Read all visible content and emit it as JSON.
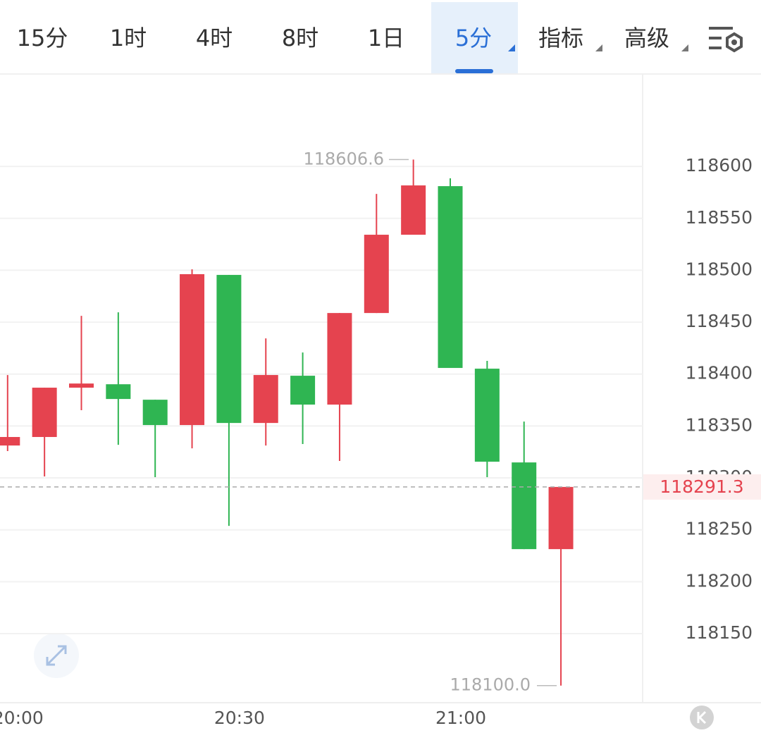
{
  "tabs": {
    "items": [
      "15分",
      "1时",
      "4时",
      "8时",
      "1日",
      "5分",
      "指标",
      "高级"
    ],
    "active": 5
  },
  "chart_data": {
    "type": "candlestick",
    "categories": [
      "20:00",
      null,
      null,
      null,
      null,
      null,
      "20:30",
      null,
      null,
      null,
      null,
      null,
      "21:00",
      null,
      null,
      null
    ],
    "open": [
      118331.2,
      118339.4,
      118386.9,
      118390.2,
      118375.3,
      118350.9,
      118495.5,
      118352.9,
      118398.4,
      118370.6,
      118458.8,
      118534.2,
      118581.0,
      118405.2,
      118314.9,
      118231.4
    ],
    "high": [
      118399.1,
      118386.9,
      118456.1,
      118459.5,
      118375.3,
      118500.9,
      118495.5,
      118434.4,
      118420.8,
      118458.8,
      118573.5,
      118606.6,
      118588.5,
      118412.7,
      118354.3,
      118291.3
    ],
    "low": [
      118325.8,
      118301.4,
      118365.2,
      118331.9,
      118300.7,
      118328.5,
      118253.8,
      118331.2,
      118332.6,
      118316.3,
      118458.8,
      118534.2,
      118405.9,
      118300.7,
      118231.4,
      118100.0
    ],
    "close": [
      118339.4,
      118386.9,
      118390.9,
      118376.0,
      118350.9,
      118496.2,
      118352.9,
      118399.1,
      118370.6,
      118458.8,
      118534.2,
      118581.7,
      118405.9,
      118315.6,
      118231.4,
      118291.3
    ],
    "up_color": "#e5434f",
    "down_color": "#2fb552",
    "ylim": [
      118083.5,
      118689
    ],
    "yticks": [
      118150,
      118200,
      118250,
      118300,
      118350,
      118400,
      118450,
      118500,
      118550,
      118600
    ],
    "grid": true,
    "high_marker": {
      "value": 118606.6,
      "label": "118606.6"
    },
    "low_marker": {
      "value": 118100.0,
      "label": "118100.0"
    },
    "last_price": {
      "value": 118291.3,
      "label": "118291.3"
    }
  }
}
